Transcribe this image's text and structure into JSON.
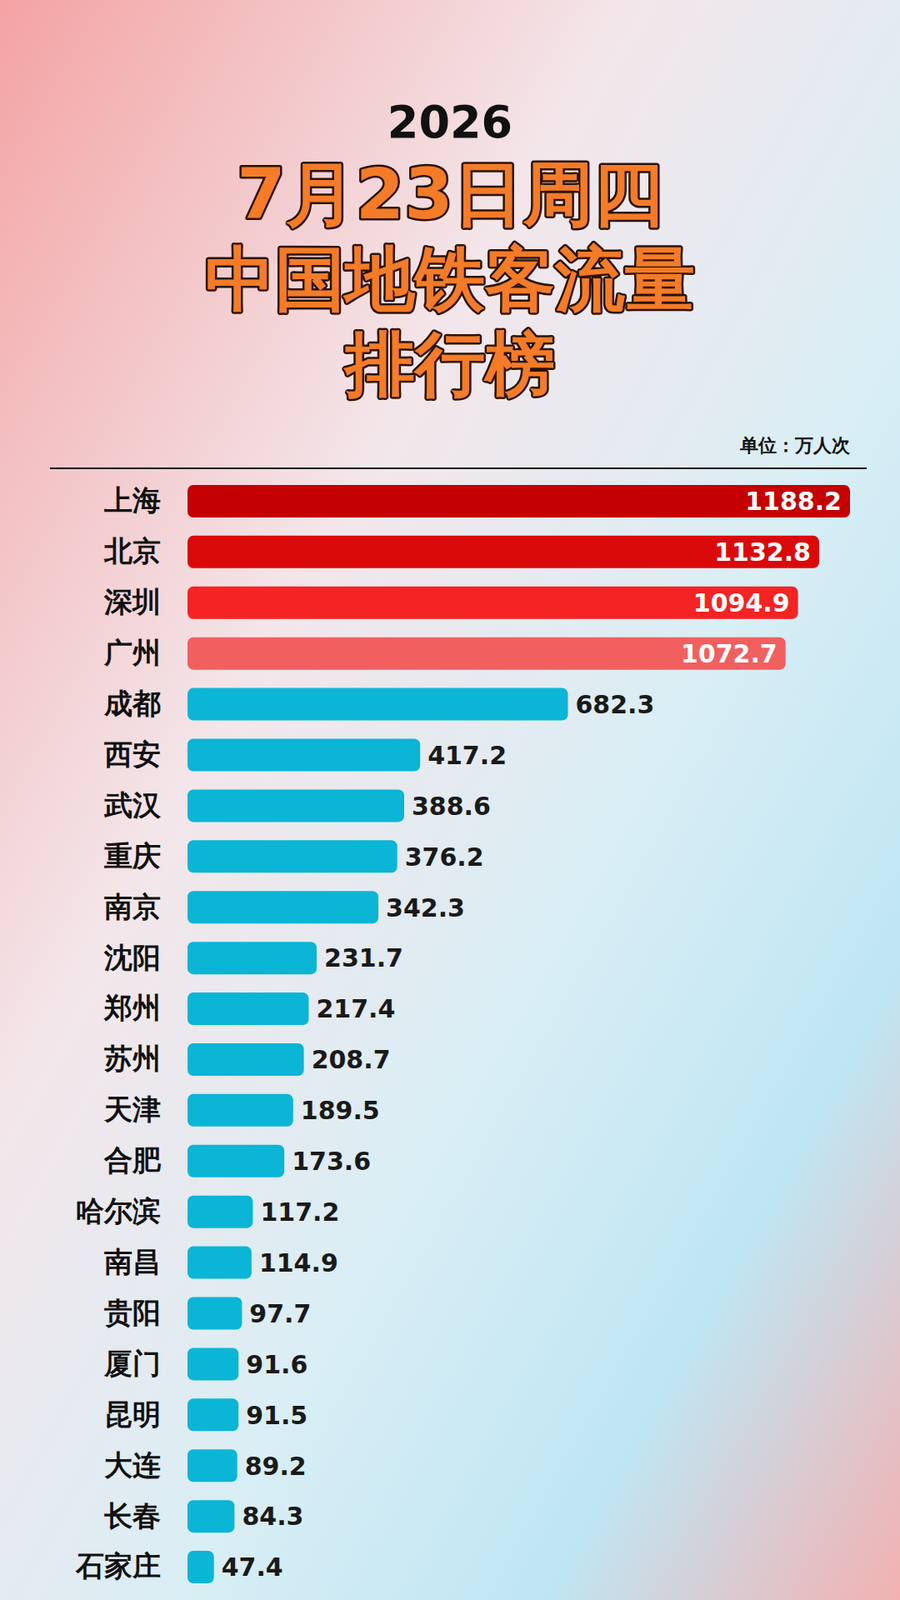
{
  "chart_data": {
    "type": "bar",
    "orientation": "horizontal",
    "title": [
      "2026",
      "7月23日周四",
      "中国地铁客流量",
      "排行榜"
    ],
    "annotations": [
      "单位：万人次"
    ],
    "categories": [
      "上海",
      "北京",
      "深圳",
      "广州",
      "成都",
      "西安",
      "武汉",
      "重庆",
      "南京",
      "沈阳",
      "郑州",
      "苏州",
      "天津",
      "合肥",
      "哈尔滨",
      "南昌",
      "贵阳",
      "厦门",
      "昆明",
      "大连",
      "长春",
      "石家庄"
    ],
    "values": [
      1188.2,
      1132.8,
      1094.9,
      1072.7,
      682.3,
      417.2,
      388.6,
      376.2,
      342.3,
      231.7,
      217.4,
      208.7,
      189.5,
      173.6,
      117.2,
      114.9,
      97.7,
      91.6,
      91.5,
      89.2,
      84.3,
      47.4
    ],
    "colors": [
      "#c40000",
      "#db0a0a",
      "#f52323",
      "#f25f5f",
      "#0bb5d6",
      "#0bb5d6",
      "#0bb5d6",
      "#0bb5d6",
      "#0bb5d6",
      "#0bb5d6",
      "#0bb5d6",
      "#0bb5d6",
      "#0bb5d6",
      "#0bb5d6",
      "#0bb5d6",
      "#0bb5d6",
      "#0bb5d6",
      "#0bb5d6",
      "#0bb5d6",
      "#0bb5d6",
      "#0bb5d6",
      "#0bb5d6"
    ],
    "xlim": [
      0,
      1188.2
    ],
    "data_labels": true,
    "tick_labels": false,
    "grid": false
  }
}
